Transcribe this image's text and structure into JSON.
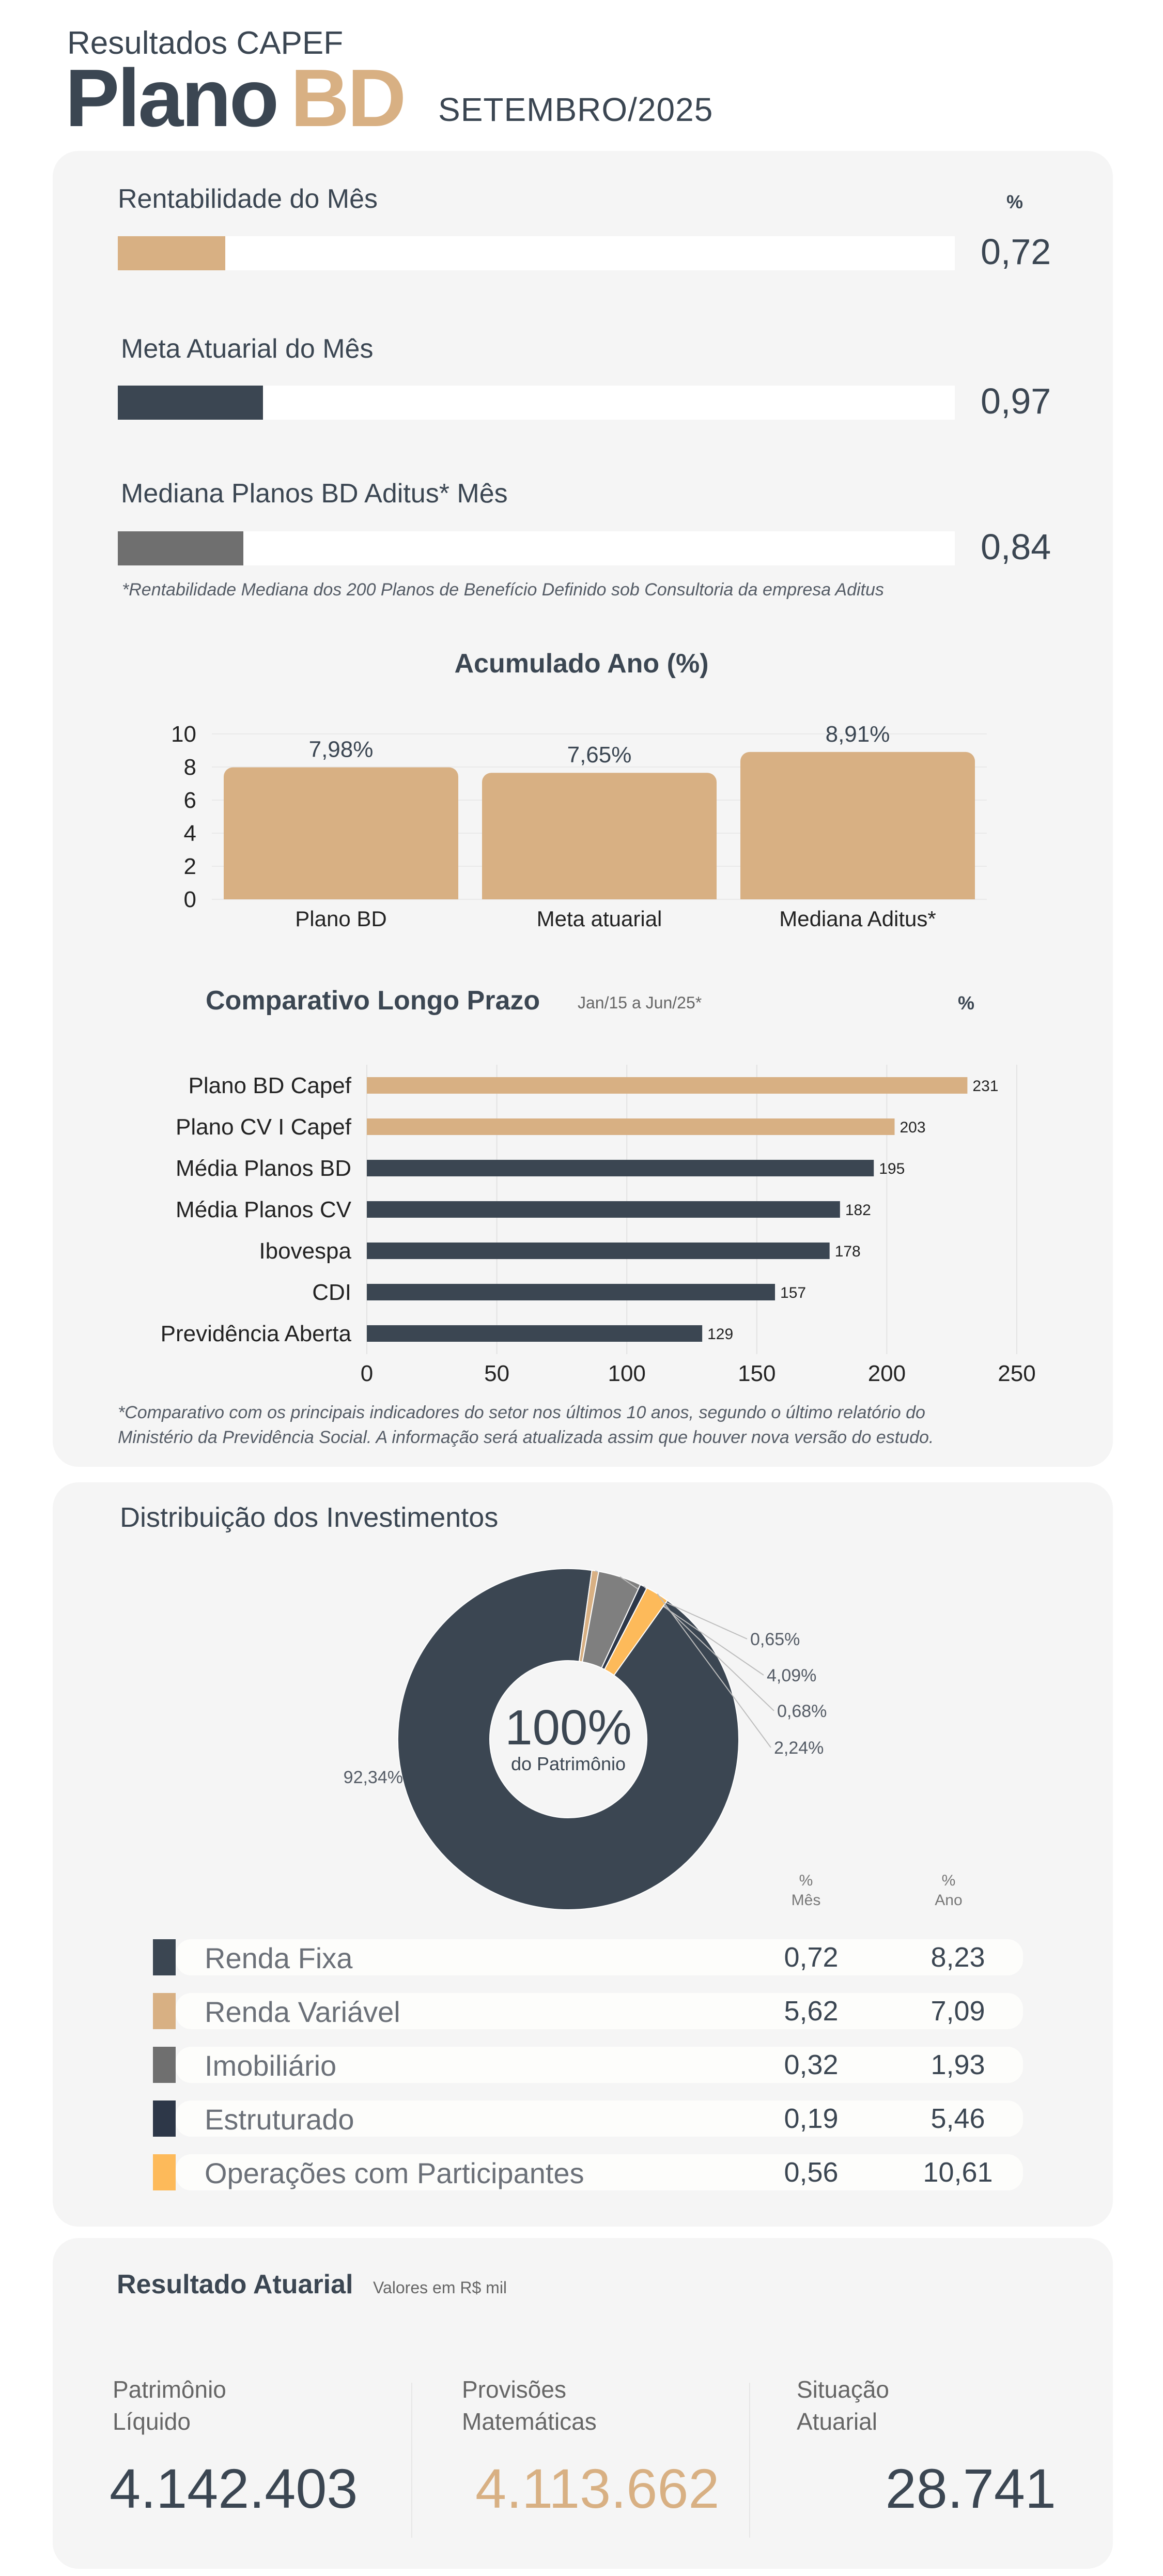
{
  "header": {
    "kicker": "Resultados CAPEF",
    "title_main": "Plano",
    "title_accent": "BD",
    "period": "SETEMBRO/2025"
  },
  "monthly": {
    "percent_symbol": "%",
    "items": [
      {
        "label": "Rentabilidade do Mês",
        "value": "0,72",
        "pct": 0.72,
        "color": "#d8b083"
      },
      {
        "label": "Meta Atuarial do Mês",
        "value": "0,97",
        "pct": 0.97,
        "color": "#3b4652"
      },
      {
        "label": "Mediana Planos BD Aditus* Mês",
        "value": "0,84",
        "pct": 0.84,
        "color": "#6f6f6f"
      }
    ],
    "footnote": "*Rentabilidade Mediana dos 200 Planos de Benefício Definido sob Consultoria da empresa Aditus"
  },
  "accumulated": {
    "title": "Acumulado Ano (%)"
  },
  "longterm": {
    "title": "Comparativo Longo Prazo",
    "subtitle": "Jan/15 a Jun/25*",
    "percent_symbol": "%",
    "footnote_line1": "*Comparativo com os principais indicadores do setor nos últimos 10 anos, segundo o último relatório do",
    "footnote_line2": "Ministério da Previdência Social. A informação será atualizada assim que houver nova versão do estudo."
  },
  "distribution": {
    "title": "Distribuição dos Investimentos",
    "center_value": "100%",
    "center_label": "do Patrimônio",
    "col_month_pct": "%",
    "col_month": "Mês",
    "col_year_pct": "%",
    "col_year": "Ano",
    "rows": [
      {
        "label": "Renda Fixa",
        "month": "0,72",
        "year": "8,23",
        "color": "#3b4652"
      },
      {
        "label": "Renda Variável",
        "month": "5,62",
        "year": "7,09",
        "color": "#d8b083"
      },
      {
        "label": "Imobiliário",
        "month": "0,32",
        "year": "1,93",
        "color": "#6f6f6f"
      },
      {
        "label": "Estruturado",
        "month": "0,19",
        "year": "5,46",
        "color": "#2d3748"
      },
      {
        "label": "Operações com Participantes",
        "month": "0,56",
        "year": "10,61",
        "color": "#fdba5a"
      }
    ]
  },
  "actuarial": {
    "title": "Resultado Atuarial",
    "subtitle": "Valores em R$ mil",
    "items": [
      {
        "label_line1": "Patrimônio",
        "label_line2": "Líquido",
        "value": "4.142.403",
        "color": "#3b4652"
      },
      {
        "label_line1": "Provisões",
        "label_line2": "Matemáticas",
        "value": "4.113.662",
        "color": "#d8b083"
      },
      {
        "label_line1": "Situação",
        "label_line2": "Atuarial",
        "value": "28.741",
        "color": "#3b4652"
      }
    ]
  },
  "chart_data": [
    {
      "type": "bar",
      "title": "Acumulado Ano (%)",
      "categories": [
        "Plano BD",
        "Meta atuarial",
        "Mediana Aditus*"
      ],
      "values": [
        7.98,
        7.65,
        8.91
      ],
      "data_labels": [
        "7,98%",
        "7,65%",
        "8,91%"
      ],
      "y_ticks": [
        0,
        2,
        4,
        6,
        8,
        10
      ],
      "ylim": [
        0,
        10
      ],
      "color": "#d8b083"
    },
    {
      "type": "bar",
      "orientation": "horizontal",
      "title": "Comparativo Longo Prazo",
      "categories": [
        "Plano BD Capef",
        "Plano CV I Capef",
        "Média Planos BD",
        "Média Planos CV",
        "Ibovespa",
        "CDI",
        "Previdência Aberta"
      ],
      "values": [
        231,
        203,
        195,
        182,
        178,
        157,
        129
      ],
      "colors": [
        "#d8b083",
        "#d8b083",
        "#3b4652",
        "#3b4652",
        "#3b4652",
        "#3b4652",
        "#3b4652"
      ],
      "x_ticks": [
        0,
        50,
        100,
        150,
        200,
        250
      ],
      "xlim": [
        0,
        250
      ]
    },
    {
      "type": "pie",
      "title": "",
      "slices": [
        {
          "label": "92,34%",
          "value": 92.34,
          "color": "#3b4652"
        },
        {
          "label": "0,65%",
          "value": 0.65,
          "color": "#d8b083"
        },
        {
          "label": "4,09%",
          "value": 4.09,
          "color": "#7f7f7f"
        },
        {
          "label": "0,68%",
          "value": 0.68,
          "color": "#2d3748"
        },
        {
          "label": "2,24%",
          "value": 2.24,
          "color": "#fdba5a"
        }
      ]
    }
  ]
}
